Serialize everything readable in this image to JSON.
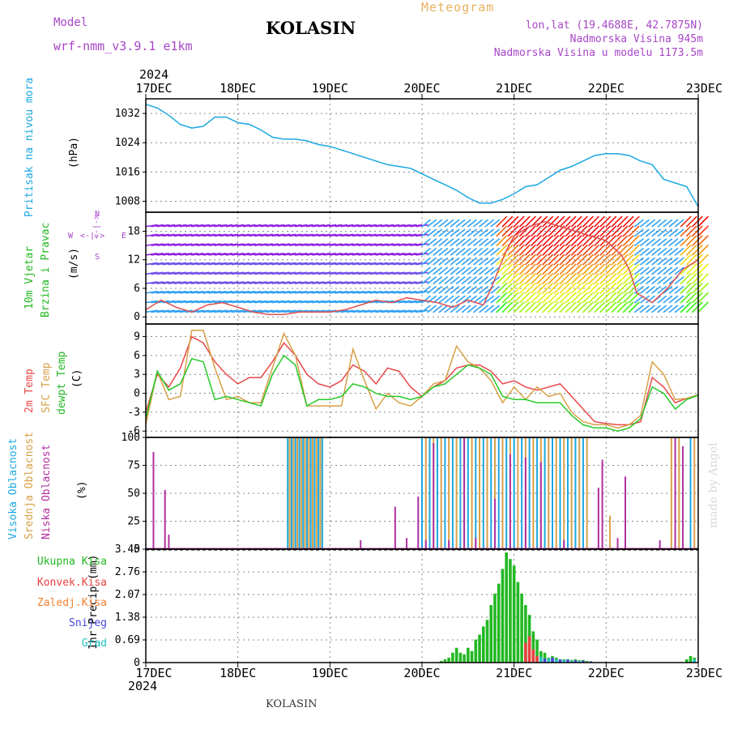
{
  "header": {
    "model_label": "Model",
    "model_name": "wrf-nmm_v3.9.1 e1km",
    "station": "KOLASIN",
    "meteogram_label": "Meteogram",
    "lonlat": "lon,lat (19.4688E, 42.7875N)",
    "elevation": "Nadmorska Visina 945m",
    "model_elevation": "Nadmorska Visina u modelu 1173.5m",
    "year_top": "2024",
    "year_bottom": "2024",
    "footer_station": "KOLASIN",
    "credit": "made by Angel"
  },
  "dates": [
    "17DEC",
    "18DEC",
    "19DEC",
    "20DEC",
    "21DEC",
    "22DEC",
    "23DEC"
  ],
  "panels": {
    "pressure": {
      "label1": "Pritisak na nivou mora",
      "label2": "(hPa)",
      "color": "#1ba7e0"
    },
    "wind": {
      "label1": "10m Vjetar",
      "label2": "Brzina i Pravac",
      "label3": "(m/s)",
      "compass_n": "N",
      "compass_w": "W",
      "compass_e": "E",
      "compass_s": "S",
      "compass_arrows": "<-|->"
    },
    "temp": {
      "label1": "2m Temp",
      "label2": "SFC Temp",
      "label3": "dewpt Temp",
      "label4": "(C)"
    },
    "cloud": {
      "label1": "Visoka Oblacnost",
      "label2": "Srednja Oblacnost",
      "label3": "Niska Oblacnost",
      "label4": "(%)"
    },
    "precip": {
      "label1": "1hr Precip (mm)"
    }
  },
  "precip_legend": [
    {
      "name": "Ukupna Kisa",
      "color": "#22b822"
    },
    {
      "name": "Konvek.Kisa",
      "color": "#e84040"
    },
    {
      "name": "Zaledj.Kisa",
      "color": "#f08030"
    },
    {
      "name": "Snijeg",
      "color": "#4848e0"
    },
    {
      "name": "Grad",
      "color": "#20c0c0"
    }
  ],
  "chart_data": [
    {
      "type": "line",
      "name": "pressure",
      "ylim": [
        1005,
        1036
      ],
      "yticks": [
        1008,
        1016,
        1024,
        1032
      ],
      "xlim": [
        0,
        144
      ],
      "series": [
        {
          "name": "Pritisak na nivou mora",
          "color": "#1ba7e0",
          "x": [
            0,
            3,
            6,
            9,
            12,
            15,
            18,
            21,
            24,
            27,
            30,
            33,
            36,
            39,
            42,
            45,
            48,
            51,
            54,
            57,
            60,
            63,
            66,
            69,
            72,
            75,
            78,
            81,
            84,
            87,
            90,
            93,
            96,
            99,
            102,
            105,
            108,
            111,
            114,
            117,
            120,
            123,
            126,
            129,
            132,
            135,
            138,
            141,
            144
          ],
          "y": [
            1034.5,
            1033.5,
            1031.5,
            1029,
            1028,
            1028.5,
            1031,
            1031,
            1029.5,
            1029,
            1027.5,
            1025.5,
            1025,
            1025,
            1024.5,
            1023.5,
            1023,
            1022,
            1021,
            1020,
            1019,
            1018,
            1017.5,
            1017,
            1015.5,
            1014,
            1012.5,
            1011,
            1009,
            1007.5,
            1007.5,
            1008.5,
            1010,
            1012,
            1012.5,
            1014.5,
            1016.5,
            1017.5,
            1019,
            1020.5,
            1021,
            1021,
            1020.5,
            1019,
            1018,
            1014,
            1013,
            1012,
            1006.5
          ]
        }
      ]
    },
    {
      "type": "line",
      "name": "wind_speed",
      "ylim": [
        -1.5,
        22
      ],
      "yticks": [
        0,
        6,
        12,
        18
      ],
      "xlim": [
        0,
        144
      ],
      "series": [
        {
          "name": "wind speed",
          "color": "#e05050",
          "x": [
            0,
            4,
            8,
            12,
            16,
            20,
            24,
            28,
            32,
            36,
            40,
            44,
            48,
            52,
            56,
            60,
            64,
            68,
            72,
            76,
            80,
            84,
            88,
            90,
            92,
            94,
            96,
            100,
            104,
            108,
            112,
            116,
            120,
            124,
            126,
            128,
            132,
            136,
            140,
            144
          ],
          "y": [
            1.5,
            3.5,
            2,
            1,
            2.5,
            3,
            2,
            1,
            0.5,
            0.5,
            1,
            1,
            1,
            1.5,
            2.5,
            3.5,
            3,
            4,
            3.5,
            3,
            2,
            3.5,
            2.5,
            6,
            10,
            14,
            17,
            19,
            20,
            19,
            18,
            17,
            16,
            13,
            10,
            5,
            3,
            6,
            10,
            12
          ]
        }
      ]
    },
    {
      "type": "line",
      "name": "temperature",
      "ylim": [
        -7,
        11
      ],
      "yticks": [
        -6,
        -3,
        0,
        3,
        6,
        9
      ],
      "xlim": [
        0,
        144
      ],
      "series": [
        {
          "name": "2m Temp",
          "color": "#e84848",
          "x": [
            0,
            3,
            6,
            9,
            12,
            15,
            18,
            21,
            24,
            27,
            30,
            33,
            36,
            39,
            42,
            45,
            48,
            51,
            54,
            57,
            60,
            63,
            66,
            69,
            72,
            75,
            78,
            81,
            84,
            87,
            90,
            93,
            96,
            99,
            102,
            105,
            108,
            111,
            114,
            117,
            120,
            123,
            126,
            129,
            132,
            135,
            138,
            141,
            144
          ],
          "y": [
            -3,
            3,
            1,
            4,
            9,
            8,
            5,
            3,
            1.5,
            2.5,
            2.5,
            5,
            8,
            6,
            3,
            1.5,
            1,
            2,
            4.5,
            3.5,
            1.5,
            4,
            3.5,
            1,
            -0.5,
            1,
            2,
            4,
            4.5,
            4.5,
            3.5,
            1.5,
            2,
            1,
            0.5,
            1,
            1.5,
            -0.5,
            -2.5,
            -4.5,
            -4.8,
            -5,
            -5,
            -4.5,
            2.5,
            1,
            -1.5,
            -0.8,
            -0.3
          ]
        },
        {
          "name": "SFC Temp",
          "color": "#d8a048",
          "x": [
            0,
            3,
            6,
            9,
            12,
            15,
            18,
            21,
            24,
            27,
            30,
            33,
            36,
            39,
            42,
            45,
            48,
            51,
            54,
            57,
            60,
            63,
            66,
            69,
            72,
            75,
            78,
            81,
            84,
            87,
            90,
            93,
            96,
            99,
            102,
            105,
            108,
            111,
            114,
            117,
            120,
            123,
            126,
            129,
            132,
            135,
            138,
            141,
            144
          ],
          "y": [
            -5,
            3.5,
            -1,
            -0.5,
            10,
            10,
            4,
            -1,
            -0.5,
            -1.5,
            -1.5,
            4,
            9.5,
            6,
            -2,
            -2,
            -2,
            -2,
            7,
            2,
            -2.5,
            0,
            -1.5,
            -2,
            -0.5,
            1.5,
            2,
            7.5,
            5,
            4,
            2,
            -1.5,
            1,
            -1,
            1,
            -0.5,
            0,
            -3,
            -4.5,
            -5,
            -5,
            -5.5,
            -5,
            -3.5,
            5,
            3,
            -1,
            -0.8,
            -0.2
          ]
        },
        {
          "name": "dewpt Temp",
          "color": "#28c828",
          "x": [
            0,
            3,
            6,
            9,
            12,
            15,
            18,
            21,
            24,
            27,
            30,
            33,
            36,
            39,
            42,
            45,
            48,
            51,
            54,
            57,
            60,
            63,
            66,
            69,
            72,
            75,
            78,
            81,
            84,
            87,
            90,
            93,
            96,
            99,
            102,
            105,
            108,
            111,
            114,
            117,
            120,
            123,
            126,
            129,
            132,
            135,
            138,
            141,
            144
          ],
          "y": [
            -4,
            3.5,
            0.5,
            1.5,
            5.5,
            5,
            -1,
            -0.5,
            -1,
            -1.5,
            -2,
            3,
            6,
            4.5,
            -2,
            -1,
            -1,
            -0.5,
            1.5,
            1,
            0,
            -0.5,
            -0.5,
            -1,
            -0.5,
            1,
            1.5,
            3,
            4.5,
            4,
            3,
            -0.5,
            -1,
            -1,
            -1.5,
            -1.5,
            -1.5,
            -3.5,
            -5,
            -5.5,
            -5.5,
            -6,
            -5.5,
            -4,
            1,
            0,
            -2.5,
            -1,
            -0.3
          ]
        }
      ]
    },
    {
      "type": "bar",
      "name": "cloud_cover",
      "ylim": [
        0,
        100
      ],
      "yticks": [
        0,
        25,
        50,
        75,
        100
      ],
      "xlim": [
        0,
        144
      ],
      "series": [
        {
          "name": "Visoka Oblacnost",
          "color": "#1ba7e0",
          "x": [
            37,
            38,
            39,
            40,
            41,
            42,
            43,
            44,
            45,
            46,
            72,
            74,
            76,
            78,
            80,
            82,
            84,
            86,
            88,
            90,
            92,
            94,
            96,
            98,
            100,
            102,
            104,
            106,
            108,
            110,
            112,
            114,
            142
          ],
          "y": [
            100,
            100,
            100,
            100,
            100,
            100,
            100,
            100,
            100,
            100,
            100,
            100,
            100,
            100,
            100,
            100,
            100,
            100,
            100,
            100,
            100,
            100,
            100,
            100,
            100,
            100,
            100,
            100,
            100,
            100,
            100,
            100,
            100
          ]
        },
        {
          "name": "Srednja Oblacnost",
          "color": "#d8a048",
          "x": [
            37.5,
            38.5,
            39.5,
            40.5,
            41.5,
            42.5,
            43.5,
            44.5,
            45.5,
            73,
            75,
            77,
            79,
            81,
            83,
            85,
            87,
            89,
            91,
            93,
            95,
            97,
            99,
            101,
            103,
            105,
            107,
            109,
            111,
            113,
            115,
            121,
            137,
            139,
            143
          ],
          "y": [
            100,
            100,
            100,
            100,
            100,
            100,
            100,
            100,
            100,
            100,
            100,
            100,
            100,
            100,
            100,
            100,
            100,
            100,
            100,
            100,
            100,
            100,
            100,
            100,
            100,
            100,
            100,
            100,
            100,
            100,
            100,
            30,
            100,
            100,
            100
          ]
        },
        {
          "name": "Niska Oblacnost",
          "color": "#b030a0",
          "x": [
            2,
            5,
            6,
            56,
            65,
            68,
            71,
            73,
            75,
            79,
            83,
            86,
            91,
            95,
            99,
            103,
            109,
            118,
            119,
            123,
            125,
            134,
            138,
            140
          ],
          "y": [
            87,
            53,
            13,
            8,
            38,
            10,
            47,
            8,
            95,
            8,
            100,
            10,
            45,
            85,
            82,
            78,
            8,
            55,
            80,
            10,
            65,
            8,
            100,
            92
          ]
        }
      ]
    },
    {
      "type": "bar",
      "name": "precipitation",
      "ylim": [
        0,
        3.45
      ],
      "yticks": [
        0,
        0.69,
        1.38,
        2.07,
        2.76,
        3.45
      ],
      "xlim": [
        0,
        144
      ],
      "series": [
        {
          "name": "Ukupna Kisa",
          "color": "#22b822",
          "x": [
            77,
            78,
            79,
            80,
            81,
            82,
            83,
            84,
            85,
            86,
            87,
            88,
            89,
            90,
            91,
            92,
            93,
            94,
            95,
            96,
            97,
            98,
            99,
            100,
            101,
            102,
            103,
            104,
            105,
            106,
            107,
            108,
            109,
            110,
            111,
            112,
            113,
            114,
            115,
            141,
            142,
            143
          ],
          "y": [
            0.05,
            0.1,
            0.15,
            0.3,
            0.45,
            0.3,
            0.25,
            0.45,
            0.35,
            0.7,
            0.85,
            1.1,
            1.3,
            1.75,
            2.1,
            2.4,
            2.85,
            3.35,
            3.15,
            2.95,
            2.45,
            2.1,
            1.75,
            1.45,
            0.95,
            0.7,
            0.35,
            0.3,
            0.15,
            0.2,
            0.15,
            0.1,
            0.1,
            0.1,
            0.08,
            0.1,
            0.07,
            0.08,
            0.05,
            0.1,
            0.2,
            0.15
          ]
        },
        {
          "name": "Konvek.Kisa",
          "color": "#e84040",
          "x": [
            99,
            100,
            101,
            102
          ],
          "y": [
            0.6,
            0.8,
            0.4,
            0.2
          ]
        },
        {
          "name": "Snijeg",
          "color": "#4848e0",
          "x": [
            104,
            106,
            108,
            110,
            112,
            114,
            116
          ],
          "y": [
            0.12,
            0.15,
            0.1,
            0.09,
            0.07,
            0.06,
            0.04
          ]
        },
        {
          "name": "Grad",
          "color": "#20c0c0",
          "x": [
            103,
            105,
            107,
            109,
            111,
            113,
            143
          ],
          "y": [
            0.18,
            0.12,
            0.1,
            0.08,
            0.06,
            0.05,
            0.1
          ]
        }
      ]
    }
  ]
}
